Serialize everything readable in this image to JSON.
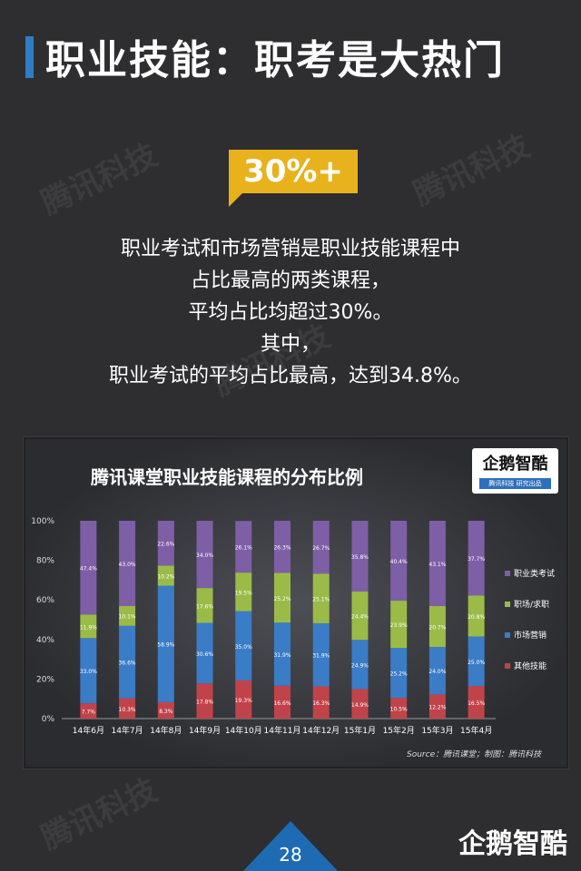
{
  "header": {
    "title": "职业技能：职考是大热门"
  },
  "watermarks": [
    "腾讯科技",
    "腾讯科技",
    "腾讯科技",
    "腾讯科技"
  ],
  "badge": {
    "text": "30%+",
    "color": "#e8b21c"
  },
  "description": [
    "职业考试和市场营销是职业技能课程中",
    "占比最高的两类课程，",
    "平均占比均超过30%。",
    "其中，",
    "职业考试的平均占比最高，达到34.8%。"
  ],
  "logo": {
    "main": "企鹅智酷",
    "sub": "腾讯科技 研究出品"
  },
  "chart_data": {
    "type": "bar",
    "stacked": true,
    "title": "腾讯课堂职业技能课程的分布比例",
    "categories": [
      "14年6月",
      "14年7月",
      "14年8月",
      "14年9月",
      "14年10月",
      "14年11月",
      "14年12月",
      "15年1月",
      "15年2月",
      "15年3月",
      "15年4月"
    ],
    "yticks": [
      "0%",
      "20%",
      "40%",
      "60%",
      "80%",
      "100%"
    ],
    "ylim": [
      0,
      100
    ],
    "legend_position": "right",
    "series": [
      {
        "name": "其他技能",
        "color": "#c1434a",
        "values": [
          7.7,
          10.3,
          8.3,
          17.8,
          19.3,
          16.6,
          16.3,
          14.9,
          10.5,
          12.2,
          16.5
        ],
        "labels": [
          "7.7%",
          "10.3%",
          "8.3%",
          "17.8%",
          "19.3%",
          "16.6%",
          "16.3%",
          "14.9%",
          "10.5%",
          "12.2%",
          "16.5%"
        ]
      },
      {
        "name": "市场营销",
        "color": "#3b7cc7",
        "values": [
          33.0,
          36.6,
          58.9,
          30.6,
          35.0,
          31.9,
          31.9,
          24.9,
          25.2,
          24.0,
          25.0
        ],
        "labels": [
          "33.0%",
          "36.6%",
          "58.9%",
          "30.6%",
          "35.0%",
          "31.9%",
          "31.9%",
          "24.9%",
          "25.2%",
          "24.0%",
          "25.0%"
        ]
      },
      {
        "name": "职场/求职",
        "color": "#9bbb48",
        "values": [
          11.9,
          10.1,
          10.2,
          17.6,
          19.5,
          25.2,
          25.1,
          24.4,
          23.9,
          20.7,
          20.8
        ],
        "labels": [
          "11.9%",
          "10.1%",
          "10.2%",
          "17.6%",
          "19.5%",
          "25.2%",
          "25.1%",
          "24.4%",
          "23.9%",
          "20.7%",
          "20.8%"
        ]
      },
      {
        "name": "职业类考试",
        "color": "#7e5fa6",
        "values": [
          47.4,
          43.0,
          22.6,
          34.0,
          26.1,
          26.3,
          26.7,
          35.8,
          40.4,
          43.1,
          37.7
        ],
        "labels": [
          "47.4%",
          "43.0%",
          "22.6%",
          "34.0%",
          "26.1%",
          "26.3%",
          "26.7%",
          "35.8%",
          "40.4%",
          "43.1%",
          "37.7%"
        ]
      }
    ],
    "legend_order": [
      "职业类考试",
      "职场/求职",
      "市场营销",
      "其他技能"
    ],
    "source": "Source：腾讯课堂；制图：腾讯科技"
  },
  "footer": {
    "page_number": "28",
    "brand": "企鹅智酷"
  }
}
